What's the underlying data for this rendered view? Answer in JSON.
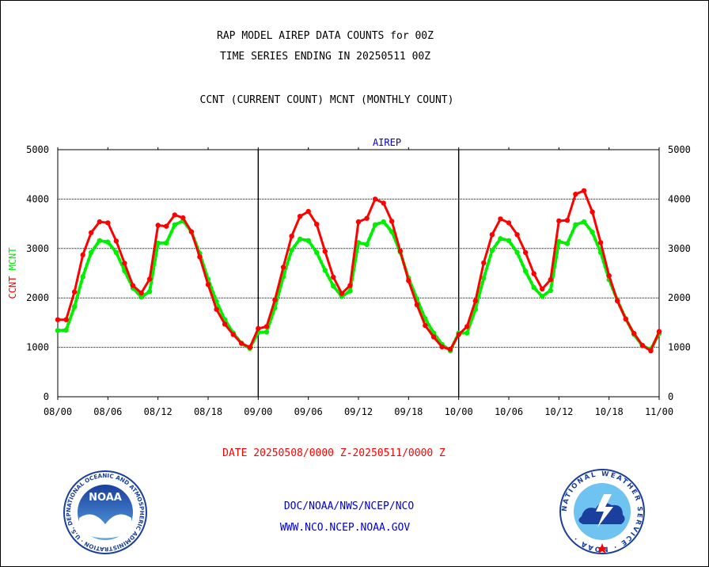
{
  "header": {
    "title_line1": "RAP MODEL AIREP DATA COUNTS for 00Z",
    "title_line2": "TIME SERIES ENDING IN 20250511 00Z",
    "subtitle": "CCNT (CURRENT COUNT) MCNT (MONTHLY COUNT)"
  },
  "footer": {
    "date_range": "DATE 20250508/0000 Z-20250511/0000 Z",
    "org": "DOC/NOAA/NWS/NCEP/NCO",
    "url": "WWW.NCO.NCEP.NOAA.GOV"
  },
  "logos": {
    "noaa_text": "NOAA",
    "noaa_ring": "NATIONAL OCEANIC AND ATMOSPHERIC ADMINISTRATION · U.S. DEPARTMENT OF COMMERCE ·",
    "nws_ring": "NATIONAL WEATHER SERVICE · NOAA ·"
  },
  "colors": {
    "ccnt": "#ff0000",
    "mcnt": "#00ee00",
    "panel_label": "#0000cc",
    "date_text": "#ff0000",
    "footer_text": "#0000cc"
  },
  "chart_data": {
    "type": "line",
    "panel_label": "AIREP",
    "ylabel_parts": [
      "CCNT",
      "MCNT"
    ],
    "ylim": [
      0,
      5000
    ],
    "yticks": [
      0,
      1000,
      2000,
      3000,
      4000,
      5000
    ],
    "xlim": [
      0,
      72
    ],
    "x_unit": "hours from 08/00",
    "xtick_labels": [
      "08/00",
      "08/06",
      "08/12",
      "08/18",
      "09/00",
      "09/06",
      "09/12",
      "09/18",
      "10/00",
      "10/06",
      "10/12",
      "10/18",
      "11/00"
    ],
    "grid": true,
    "series": [
      {
        "name": "CCNT",
        "color": "#ff0000",
        "values": [
          1560,
          1560,
          2120,
          2870,
          3320,
          3540,
          3520,
          3150,
          2700,
          2250,
          2100,
          2380,
          3470,
          3450,
          3680,
          3620,
          3340,
          2830,
          2270,
          1770,
          1470,
          1260,
          1080,
          1000,
          1380,
          1420,
          1960,
          2620,
          3250,
          3650,
          3750,
          3490,
          2940,
          2420,
          2090,
          2250,
          3540,
          3610,
          4000,
          3920,
          3550,
          2950,
          2350,
          1860,
          1440,
          1210,
          1010,
          960,
          1260,
          1420,
          1940,
          2710,
          3280,
          3600,
          3520,
          3280,
          2920,
          2490,
          2180,
          2370,
          3560,
          3570,
          4100,
          4170,
          3740,
          3120,
          2450,
          1940,
          1570,
          1280,
          1040,
          930,
          1320
        ]
      },
      {
        "name": "MCNT",
        "color": "#00ee00",
        "values": [
          1340,
          1350,
          1820,
          2430,
          2920,
          3160,
          3130,
          2920,
          2550,
          2200,
          2020,
          2130,
          3110,
          3110,
          3480,
          3560,
          3340,
          2900,
          2380,
          1930,
          1560,
          1290,
          1080,
          980,
          1300,
          1310,
          1800,
          2430,
          2970,
          3190,
          3160,
          2920,
          2560,
          2240,
          2030,
          2140,
          3120,
          3080,
          3480,
          3540,
          3340,
          2930,
          2400,
          1980,
          1580,
          1290,
          1060,
          930,
          1290,
          1290,
          1770,
          2400,
          2960,
          3200,
          3160,
          2920,
          2540,
          2210,
          2030,
          2150,
          3140,
          3100,
          3480,
          3540,
          3330,
          2920,
          2370,
          1950,
          1580,
          1260,
          1030,
          960,
          1280
        ]
      }
    ]
  }
}
